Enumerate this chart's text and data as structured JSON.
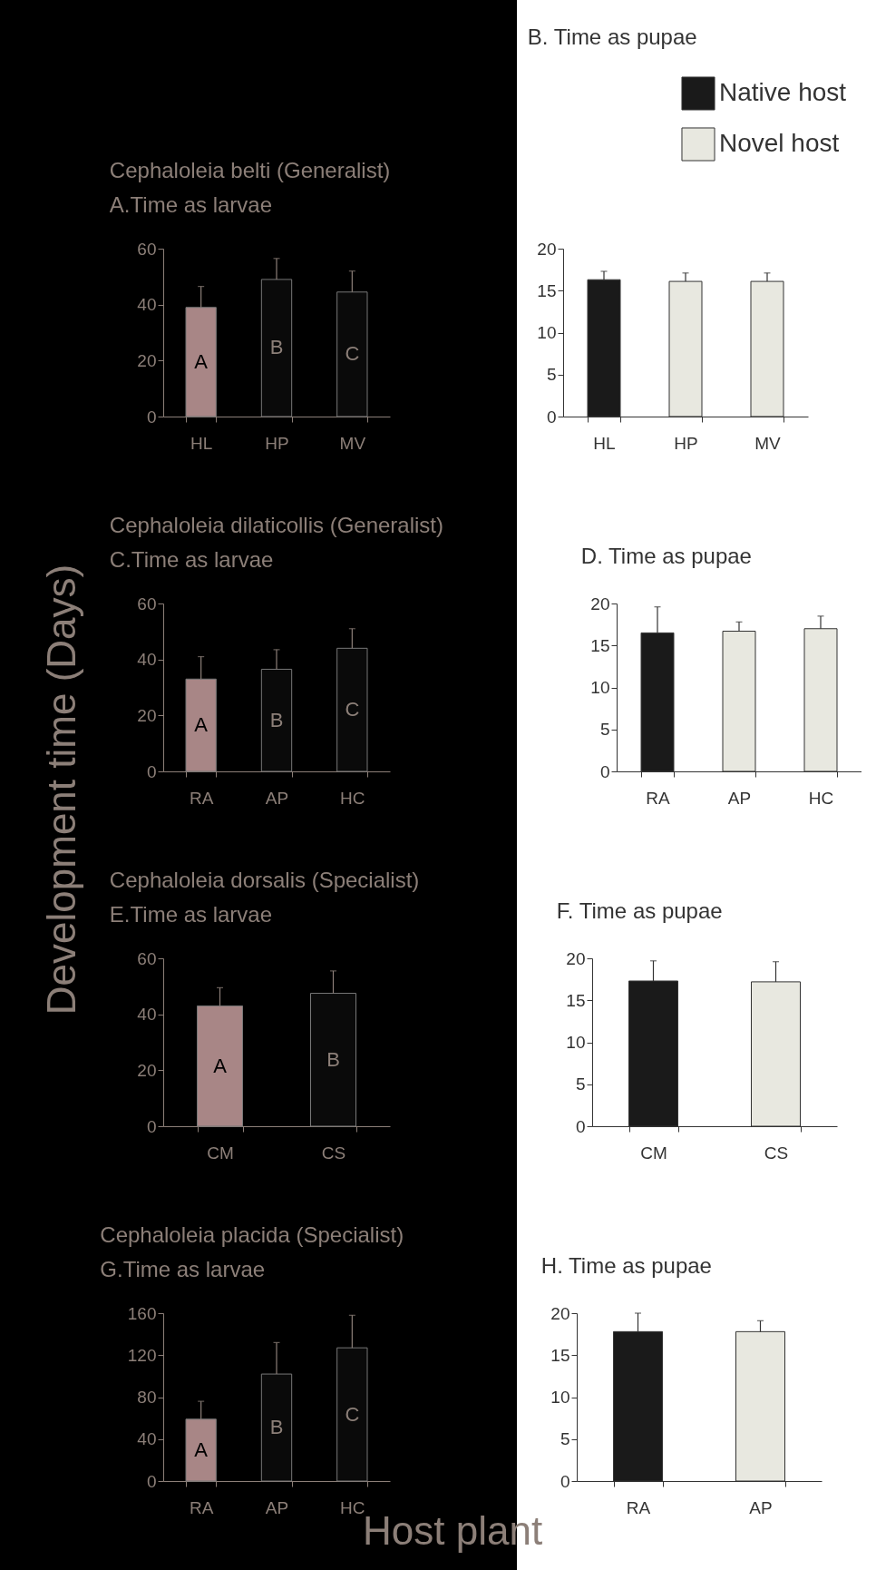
{
  "chart_data": [
    {
      "type": "bar",
      "title": "Cephaloleia belti (Generalist)",
      "subtitle": "A.Time as larvae",
      "ylabel": "Development time (Days)",
      "categories": [
        "HL",
        "HP",
        "MV"
      ],
      "values": [
        39,
        49,
        44.5
      ],
      "colors": [
        "#a88686",
        "#0a0a0a",
        "#0a0a0a"
      ],
      "errors": [
        [
          39,
          46.5
        ],
        [
          49,
          56.5
        ],
        [
          44.5,
          52
        ]
      ],
      "ylim": [
        0,
        60
      ],
      "yticks": [
        0,
        20,
        40,
        60
      ],
      "annotations": [
        "A",
        "B",
        "C"
      ]
    },
    {
      "type": "bar",
      "title": "B. Time as pupae",
      "categories": [
        "HL",
        "HP",
        "MV"
      ],
      "legend": "top right",
      "ylim": [
        0,
        20
      ],
      "yticks": [
        0,
        5,
        10,
        15,
        20
      ],
      "series": [
        {
          "name": "Native host",
          "color": "#1a1a1a",
          "values": [
            16.3,
            null,
            null
          ],
          "errors": [
            [
              16.3,
              17.3
            ],
            null,
            null
          ]
        },
        {
          "name": "Novel host",
          "color": "#e8e8e0",
          "values": [
            null,
            16.1,
            16.1
          ],
          "errors": [
            null,
            [
              16.1,
              17.1
            ],
            [
              16.1,
              17.1
            ]
          ]
        }
      ]
    },
    {
      "type": "bar",
      "title": "Cephaloleia dilaticollis (Generalist)",
      "subtitle": "C.Time as larvae",
      "categories": [
        "RA",
        "AP",
        "HC"
      ],
      "values": [
        33,
        36.5,
        44
      ],
      "colors": [
        "#a88686",
        "#0a0a0a",
        "#0a0a0a"
      ],
      "errors": [
        [
          33,
          41
        ],
        [
          36.5,
          43.5
        ],
        [
          44,
          51
        ]
      ],
      "ylim": [
        0,
        60
      ],
      "yticks": [
        0,
        20,
        40,
        60
      ],
      "annotations": [
        "A",
        "B",
        "C"
      ]
    },
    {
      "type": "bar",
      "title": "D. Time as pupae",
      "categories": [
        "RA",
        "AP",
        "HC"
      ],
      "ylim": [
        0,
        20
      ],
      "yticks": [
        0,
        5,
        10,
        15,
        20
      ],
      "series": [
        {
          "color": "#1a1a1a",
          "values": [
            16.5,
            null,
            null
          ],
          "errors": [
            [
              16.5,
              19.6
            ],
            null,
            null
          ]
        },
        {
          "color": "#e8e8e0",
          "values": [
            null,
            16.7,
            17
          ],
          "errors": [
            null,
            [
              16.7,
              17.8
            ],
            [
              17,
              18.5
            ]
          ]
        }
      ]
    },
    {
      "type": "bar",
      "title": "Cephaloleia dorsalis (Specialist)",
      "subtitle": "E.Time as larvae",
      "categories": [
        "CM",
        "CS"
      ],
      "values": [
        43,
        47.5
      ],
      "colors": [
        "#a88686",
        "#0a0a0a"
      ],
      "errors": [
        [
          43,
          49.5
        ],
        [
          47.5,
          55.5
        ]
      ],
      "ylim": [
        0,
        60
      ],
      "yticks": [
        0,
        20,
        40,
        60
      ],
      "annotations": [
        "A",
        "B"
      ]
    },
    {
      "type": "bar",
      "title": "F. Time as pupae",
      "categories": [
        "CM",
        "CS"
      ],
      "ylim": [
        0,
        20
      ],
      "yticks": [
        0,
        5,
        10,
        15,
        20
      ],
      "series": [
        {
          "color": "#1a1a1a",
          "values": [
            17.3,
            null
          ],
          "errors": [
            [
              17.3,
              19.7
            ],
            null
          ]
        },
        {
          "color": "#e8e8e0",
          "values": [
            null,
            17.2
          ],
          "errors": [
            null,
            [
              17.2,
              19.6
            ]
          ]
        }
      ]
    },
    {
      "type": "bar",
      "title": "Cephaloleia placida (Specialist)",
      "subtitle": "G.Time as larvae",
      "xlabel": "Host plant",
      "categories": [
        "RA",
        "AP",
        "HC"
      ],
      "values": [
        59,
        102,
        127
      ],
      "colors": [
        "#a88686",
        "#0a0a0a",
        "#0a0a0a"
      ],
      "errors": [
        [
          59,
          76
        ],
        [
          102,
          132
        ],
        [
          127,
          158
        ]
      ],
      "ylim": [
        0,
        160
      ],
      "yticks": [
        0,
        40,
        80,
        120,
        160
      ],
      "annotations": [
        "A",
        "B",
        "C"
      ]
    },
    {
      "type": "bar",
      "title": "H. Time as pupae",
      "categories": [
        "RA",
        "AP"
      ],
      "ylim": [
        0,
        20
      ],
      "yticks": [
        0,
        5,
        10,
        15,
        20
      ],
      "series": [
        {
          "color": "#1a1a1a",
          "values": [
            17.8,
            null
          ],
          "errors": [
            [
              17.8,
              20
            ],
            null
          ]
        },
        {
          "color": "#e8e8e0",
          "values": [
            null,
            17.8
          ],
          "errors": [
            null,
            [
              17.8,
              19.1
            ]
          ]
        }
      ]
    }
  ]
}
